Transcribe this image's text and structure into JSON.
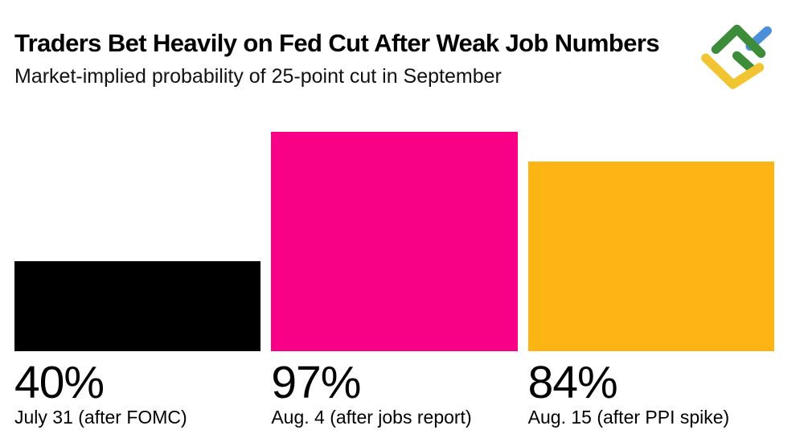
{
  "header": {
    "title": "Traders Bet Heavily on Fed Cut After Weak Job Numbers",
    "subtitle": "Market-implied probability of 25-point cut in September"
  },
  "logo": {
    "name": "LiteFinance diamond logo",
    "colors": {
      "green": "#3D8C3A",
      "blue": "#4A90D9",
      "yellow": "#F0C531"
    }
  },
  "chart_data": {
    "type": "bar",
    "title": "Traders Bet Heavily on Fed Cut After Weak Job Numbers",
    "subtitle": "Market-implied probability of 25-point cut in September",
    "categories": [
      "July 31 (after FOMC)",
      "Aug. 4 (after jobs report)",
      "Aug. 15 (after PPI spike)"
    ],
    "values": [
      40,
      97,
      84
    ],
    "value_labels": [
      "40%",
      "97%",
      "84%"
    ],
    "colors": [
      "#000000",
      "#F90186",
      "#FCB515"
    ],
    "xlabel": "",
    "ylabel": "",
    "ylim": [
      0,
      100
    ],
    "grid": false,
    "legend": false,
    "data_labels_position": "below-bar"
  }
}
